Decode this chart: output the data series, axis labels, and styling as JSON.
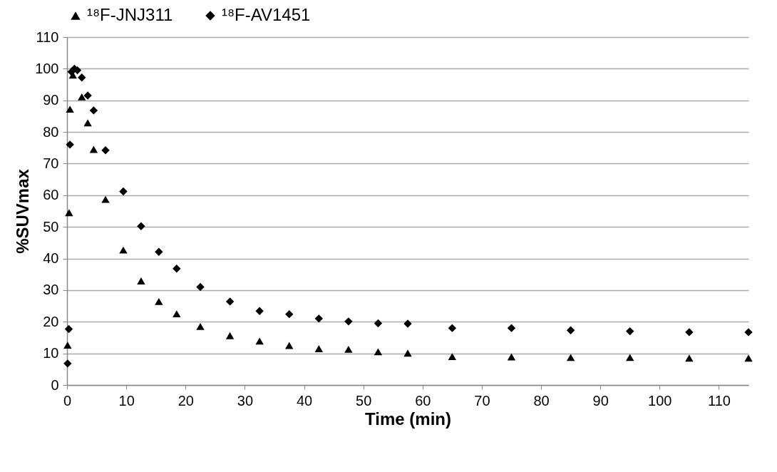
{
  "chart_data": {
    "type": "scatter",
    "xlabel": "Time (min)",
    "ylabel": "%SUVmax",
    "xlim": [
      0,
      115
    ],
    "xticks": [
      0,
      10,
      20,
      30,
      40,
      50,
      60,
      70,
      80,
      90,
      100,
      110
    ],
    "ylim": [
      0,
      110
    ],
    "yticks": [
      0,
      10,
      20,
      30,
      40,
      50,
      60,
      70,
      80,
      90,
      100,
      110
    ],
    "grid": "y",
    "legend": "top",
    "series": [
      {
        "name": "¹⁸F-JNJ311",
        "color": "#000000",
        "marker": "triangle",
        "x": [
          0.1,
          0.35,
          0.5,
          1.0,
          2.5,
          3.5,
          4.5,
          6.5,
          9.5,
          12.5,
          15.5,
          18.5,
          22.5,
          27.5,
          32.5,
          37.5,
          42.5,
          47.5,
          52.5,
          57.5,
          65,
          75,
          85,
          95,
          105,
          115
        ],
        "values": [
          12.6,
          54.5,
          87.2,
          98,
          91.1,
          82.9,
          74.5,
          58.7,
          42.7,
          32.9,
          26.4,
          22.5,
          18.5,
          15.6,
          13.9,
          12.5,
          11.5,
          11.3,
          10.5,
          10.1,
          9.0,
          8.9,
          8.7,
          8.7,
          8.5,
          8.5
        ]
      },
      {
        "name": "¹⁸F-AV1451",
        "color": "#000000",
        "marker": "diamond",
        "x": [
          0.1,
          0.3,
          0.5,
          0.75,
          1.25,
          1.75,
          2.5,
          3.5,
          4.5,
          6.5,
          9.5,
          12.5,
          15.5,
          18.5,
          22.5,
          27.5,
          32.5,
          37.5,
          42.5,
          47.5,
          52.5,
          57.5,
          65,
          75,
          85,
          95,
          105,
          115
        ],
        "values": [
          6.8,
          17.7,
          76,
          99,
          100,
          99.5,
          97.2,
          91.5,
          86.8,
          74.2,
          61.2,
          50.2,
          42.1,
          36.8,
          31.0,
          26.4,
          23.4,
          22.4,
          21.0,
          20.1,
          19.5,
          19.4,
          18.0,
          18.0,
          17.3,
          17.0,
          16.7,
          16.7
        ]
      }
    ]
  }
}
